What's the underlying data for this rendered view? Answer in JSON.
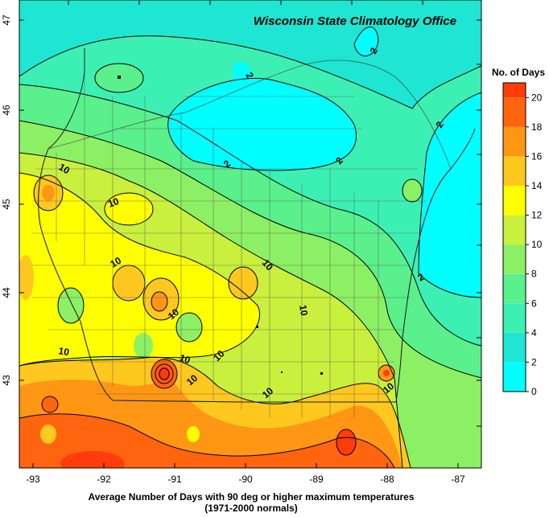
{
  "map": {
    "title": "Wisconsin State Climatology Office",
    "lon_ticks": [
      "-93",
      "-92",
      "-91",
      "-90",
      "-89",
      "-88",
      "-87"
    ],
    "lat_ticks": [
      "43",
      "44",
      "45",
      "46",
      "47"
    ],
    "contour_labels": [
      "2",
      "2",
      "2",
      "2",
      "2",
      "2",
      "10",
      "10",
      "10",
      "10",
      "10",
      "10",
      "10",
      "10",
      "10",
      "10",
      "10",
      "10"
    ],
    "legend": {
      "title": "No. of Days",
      "values": [
        "0",
        "2",
        "4",
        "6",
        "8",
        "10",
        "12",
        "14",
        "16",
        "18",
        "20"
      ],
      "colors": [
        "#00ffff",
        "#1ee6d2",
        "#3cf0b4",
        "#5af08c",
        "#8cf064",
        "#c8f03c",
        "#ffff00",
        "#ffc81e",
        "#ff9614",
        "#ff640f",
        "#ff3c0a",
        "#ff0000"
      ]
    }
  },
  "caption": {
    "line1": "Average Number of Days with 90 deg or higher maximum temperatures",
    "line2": "(1971-2000 normals)"
  }
}
